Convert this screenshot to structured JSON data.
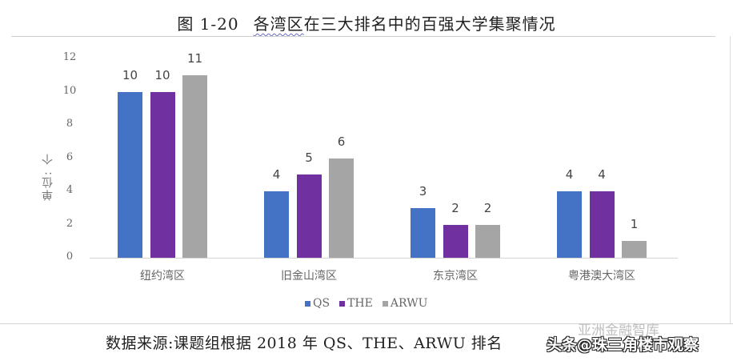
{
  "title": {
    "figure_number": "图 1-20",
    "text_underlined": "各湾区",
    "text_rest": "在三大排名中的百强大学集聚情况"
  },
  "y_axis": {
    "label": "单位: 个",
    "ticks": [
      "0",
      "2",
      "4",
      "6",
      "8",
      "10",
      "12"
    ]
  },
  "legend": [
    {
      "name": "QS",
      "color": "#4472c4"
    },
    {
      "name": "THE",
      "color": "#7030a0"
    },
    {
      "name": "ARWU",
      "color": "#a5a5a5"
    }
  ],
  "source": "数据来源:课题组根据 2018 年 QS、THE、ARWU 排名",
  "watermarks": {
    "top": "亚洲金融智库",
    "bottom": "头条@珠三角楼市观察"
  },
  "chart_data": {
    "type": "bar",
    "title": "图 1-20 各湾区在三大排名中的百强大学集聚情况",
    "xlabel": "",
    "ylabel": "单位: 个",
    "ylim": [
      0,
      12
    ],
    "yticks": [
      0,
      2,
      4,
      6,
      8,
      10,
      12
    ],
    "grid": false,
    "legend_position": "bottom",
    "categories": [
      "纽约湾区",
      "旧金山湾区",
      "东京湾区",
      "粤港澳大湾区"
    ],
    "series": [
      {
        "name": "QS",
        "color": "#4472c4",
        "values": [
          10,
          4,
          3,
          4
        ]
      },
      {
        "name": "THE",
        "color": "#7030a0",
        "values": [
          10,
          5,
          2,
          4
        ]
      },
      {
        "name": "ARWU",
        "color": "#a5a5a5",
        "values": [
          11,
          6,
          2,
          1
        ]
      }
    ],
    "data_labels": true,
    "source_note": "数据来源:课题组根据 2018 年 QS、THE、ARWU 排名"
  }
}
